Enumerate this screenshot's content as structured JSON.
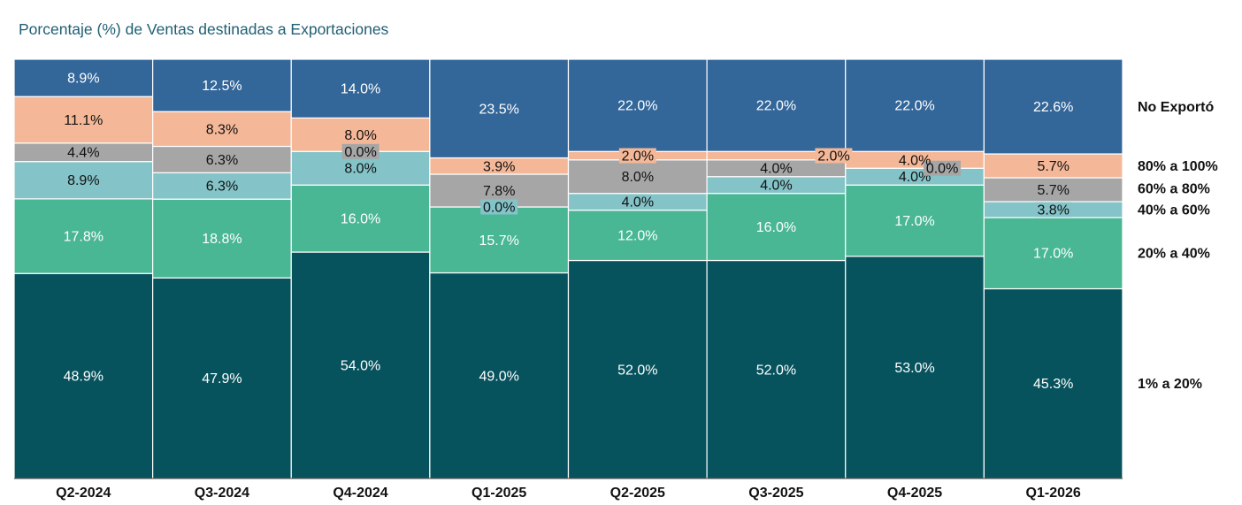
{
  "title": "Porcentaje (%) de Ventas destinadas a Exportaciones",
  "chart_data": {
    "type": "bar",
    "stacked": true,
    "normalized": true,
    "title": "Porcentaje (%) de Ventas destinadas a Exportaciones",
    "categories": [
      "Q2-2024",
      "Q3-2024",
      "Q4-2024",
      "Q1-2025",
      "Q2-2025",
      "Q3-2025",
      "Q4-2025",
      "Q1-2026"
    ],
    "ylim": [
      0,
      100
    ],
    "grid": false,
    "legend_placement": "right",
    "series": [
      {
        "name": "1% a 20%",
        "color": "#07535d",
        "values": [
          48.9,
          47.9,
          54.0,
          49.0,
          52.0,
          52.0,
          53.0,
          45.3
        ],
        "labels": [
          "48.9%",
          "47.9%",
          "54.0%",
          "49.0%",
          "52.0%",
          "52.0%",
          "53.0%",
          "45.3%"
        ]
      },
      {
        "name": "20% a 40%",
        "color": "#49b694",
        "values": [
          17.8,
          18.8,
          16.0,
          15.7,
          12.0,
          16.0,
          17.0,
          17.0
        ],
        "labels": [
          "17.8%",
          "18.8%",
          "16.0%",
          "15.7%",
          "12.0%",
          "16.0%",
          "17.0%",
          "17.0%"
        ]
      },
      {
        "name": "40% a 60%",
        "color": "#84c3c8",
        "values": [
          8.9,
          6.3,
          8.0,
          0.0,
          4.0,
          4.0,
          4.0,
          3.8
        ],
        "labels": [
          "8.9%",
          "6.3%",
          "8.0%",
          "0.0%",
          "4.0%",
          "4.0%",
          "4.0%",
          "3.8%"
        ]
      },
      {
        "name": "60% a 80%",
        "color": "#a6a6a6",
        "values": [
          4.4,
          6.3,
          0.0,
          7.8,
          8.0,
          4.0,
          0.0,
          5.7
        ],
        "labels": [
          "4.4%",
          "6.3%",
          "0.0%",
          "7.8%",
          "8.0%",
          "4.0%",
          "0.0%",
          "5.7%"
        ]
      },
      {
        "name": "80% a 100%",
        "color": "#f4b898",
        "values": [
          11.1,
          8.3,
          8.0,
          3.9,
          2.0,
          2.0,
          4.0,
          5.7
        ],
        "labels": [
          "11.1%",
          "8.3%",
          "8.0%",
          "3.9%",
          "2.0%",
          "2.0%",
          "4.0%",
          "5.7%"
        ]
      },
      {
        "name": "No Exportó",
        "color": "#336699",
        "values": [
          8.9,
          12.5,
          14.0,
          23.5,
          22.0,
          22.0,
          22.0,
          22.6
        ],
        "labels": [
          "8.9%",
          "12.5%",
          "14.0%",
          "23.5%",
          "22.0%",
          "22.0%",
          "22.0%",
          "22.6%"
        ]
      }
    ],
    "label_colors": {
      "light": "#ffffff",
      "dark": "#111111"
    }
  }
}
